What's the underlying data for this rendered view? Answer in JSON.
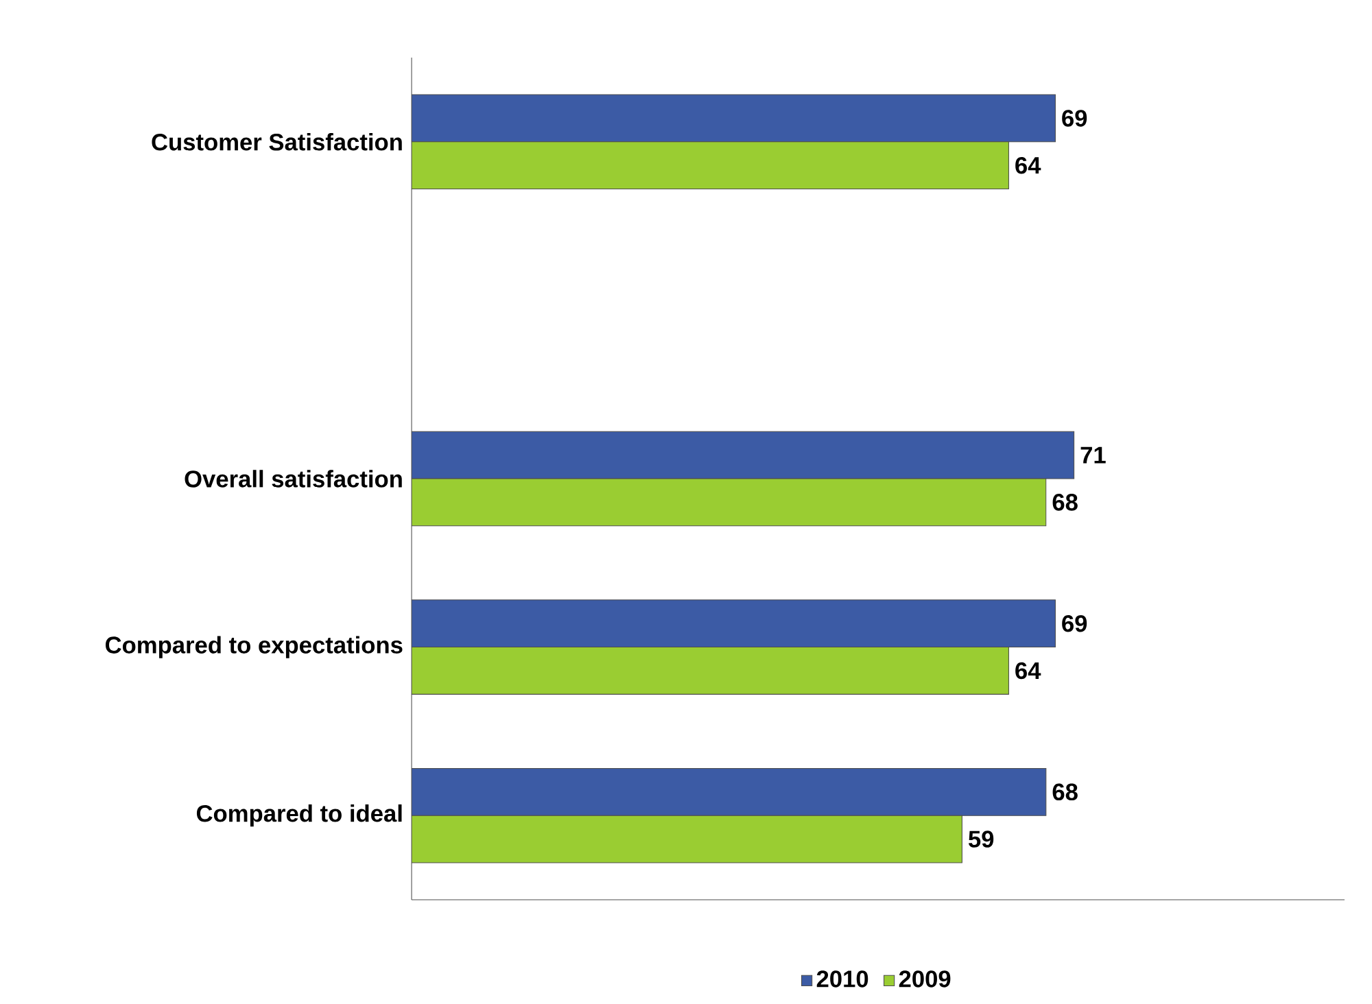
{
  "chart_data": {
    "type": "bar",
    "orientation": "horizontal",
    "categories": [
      "Customer Satisfaction",
      null,
      "Overall satisfaction",
      "Compared to expectations",
      "Compared to ideal"
    ],
    "series": [
      {
        "name": "2010",
        "color": "#3c5ba5",
        "values": [
          69,
          null,
          71,
          69,
          68
        ]
      },
      {
        "name": "2009",
        "color": "#9acd32",
        "values": [
          64,
          null,
          68,
          64,
          59
        ]
      }
    ],
    "xlim": [
      0,
      100
    ],
    "tick_labels": "y",
    "data_labels": true,
    "legend": "bottom"
  }
}
